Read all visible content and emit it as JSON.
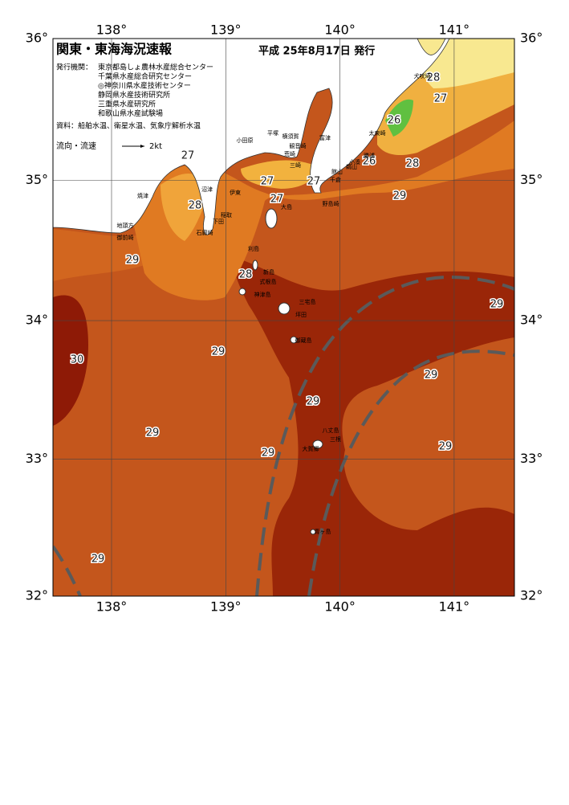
{
  "header": {
    "title": "関東・東海海況速報",
    "date": "平成 25年8月17日 発行",
    "publisher_label": "発行機関：",
    "publishers": [
      "東京都島しょ農林水産総合センター",
      "千葉県水産総合研究センター",
      "◎神奈川県水産技術センター",
      "静岡県水産技術研究所",
      "三重県水産研究所",
      "和歌山県水産試験場"
    ],
    "sources": "資料：船舶水温、衛星水温、気象庁解析水温",
    "legend_label": "流向・流速",
    "legend_speed": "2kt"
  },
  "map": {
    "lon_ticks": [
      {
        "value": 138,
        "label": "138°"
      },
      {
        "value": 139,
        "label": "139°"
      },
      {
        "value": 140,
        "label": "140°"
      },
      {
        "value": 141,
        "label": "141°"
      }
    ],
    "lat_ticks": [
      {
        "value": 36,
        "label": "36°"
      },
      {
        "value": 35,
        "label": "35°"
      },
      {
        "value": 34,
        "label": "34°"
      },
      {
        "value": 33,
        "label": "33°"
      },
      {
        "value": 32,
        "label": "32°"
      }
    ],
    "temperature_labels": [
      27,
      28,
      29,
      28,
      27,
      27,
      27,
      26,
      28,
      29,
      28,
      27,
      26,
      29,
      30,
      29,
      29,
      29,
      29,
      29,
      29,
      29
    ],
    "places": [
      "小田原",
      "平塚",
      "横須賀",
      "観音崎",
      "富津",
      "荒崎",
      "三崎",
      "館山",
      "千倉",
      "野島崎",
      "鵜山",
      "勝浦",
      "小湊",
      "太東崎",
      "犬吠埼",
      "沼津",
      "焼津",
      "伊東",
      "稲取",
      "下田",
      "石廊崎",
      "御前崎",
      "地頭方",
      "大島",
      "利島",
      "新島",
      "式根島",
      "神津島",
      "三宅島",
      "御蔵島",
      "八丈島",
      "三根",
      "大賀郷",
      "青ヶ島",
      "坪田"
    ]
  }
}
